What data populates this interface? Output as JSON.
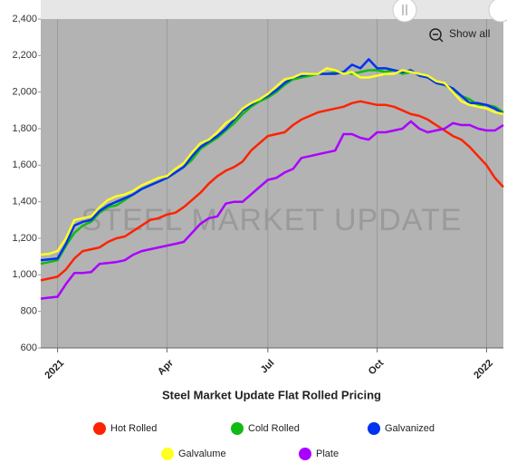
{
  "chart_data": {
    "type": "line",
    "title": "Steel Market Update Flat Rolled Pricing",
    "watermark": "STEEL MARKET UPDATE",
    "button": "Show all",
    "categories": [
      null,
      null,
      "2021",
      null,
      null,
      null,
      null,
      null,
      null,
      null,
      null,
      null,
      null,
      null,
      null,
      "Apr",
      null,
      null,
      null,
      null,
      null,
      null,
      null,
      null,
      null,
      null,
      null,
      "Jul",
      null,
      null,
      null,
      null,
      null,
      null,
      null,
      null,
      null,
      null,
      null,
      null,
      "Oct",
      null,
      null,
      null,
      null,
      null,
      null,
      null,
      null,
      null,
      null,
      null,
      null,
      "2022",
      null,
      null
    ],
    "ylim": [
      600,
      2400
    ],
    "yticks": [
      600,
      800,
      {
        "value": 1000,
        "label": "1,000"
      },
      {
        "value": 1200,
        "label": "1,200"
      },
      {
        "value": 1400,
        "label": "1,400"
      },
      {
        "value": 1600,
        "label": "1,600"
      },
      {
        "value": 1800,
        "label": "1,800"
      },
      {
        "value": 2000,
        "label": "2,000"
      },
      {
        "value": 2200,
        "label": "2,200"
      },
      {
        "value": 2400,
        "label": "2,400"
      }
    ],
    "xgrid": true,
    "series": [
      {
        "name": "Hot Rolled",
        "color": "#ff2200",
        "values": [
          970,
          980,
          990,
          1030,
          1090,
          1130,
          1140,
          1150,
          1180,
          1200,
          1210,
          1240,
          1270,
          1300,
          1310,
          1330,
          1340,
          1370,
          1410,
          1450,
          1500,
          1540,
          1570,
          1590,
          1620,
          1680,
          1720,
          1760,
          1770,
          1780,
          1820,
          1850,
          1870,
          1890,
          1900,
          1910,
          1920,
          1940,
          1950,
          1940,
          1930,
          1930,
          1920,
          1900,
          1880,
          1870,
          1850,
          1820,
          1790,
          1760,
          1740,
          1700,
          1650,
          1600,
          1530,
          1480
        ]
      },
      {
        "name": "Cold Rolled",
        "color": "#11bb11",
        "values": [
          1060,
          1070,
          1080,
          1160,
          1230,
          1270,
          1290,
          1340,
          1370,
          1380,
          1410,
          1440,
          1470,
          1490,
          1510,
          1530,
          1560,
          1590,
          1630,
          1690,
          1720,
          1750,
          1790,
          1830,
          1880,
          1920,
          1950,
          1970,
          2000,
          2040,
          2070,
          2080,
          2090,
          2100,
          2100,
          2110,
          2110,
          2100,
          2110,
          2120,
          2120,
          2110,
          2120,
          2100,
          2110,
          2100,
          2090,
          2050,
          2040,
          2010,
          1980,
          1960,
          1930,
          1930,
          1920,
          1890
        ]
      },
      {
        "name": "Galvanized",
        "color": "#0033ee",
        "values": [
          1080,
          1085,
          1090,
          1170,
          1270,
          1290,
          1300,
          1350,
          1380,
          1400,
          1420,
          1440,
          1470,
          1490,
          1510,
          1530,
          1560,
          1590,
          1650,
          1700,
          1730,
          1760,
          1800,
          1850,
          1900,
          1930,
          1960,
          1980,
          2010,
          2050,
          2080,
          2090,
          2100,
          2100,
          2100,
          2100,
          2110,
          2150,
          2130,
          2180,
          2130,
          2130,
          2120,
          2110,
          2120,
          2090,
          2080,
          2050,
          2040,
          2020,
          1980,
          1940,
          1940,
          1930,
          1910,
          1880
        ]
      },
      {
        "name": "Galvalume",
        "color": "#ffff22",
        "values": [
          1110,
          1115,
          1130,
          1200,
          1300,
          1310,
          1320,
          1370,
          1410,
          1430,
          1440,
          1460,
          1490,
          1510,
          1530,
          1540,
          1580,
          1610,
          1670,
          1720,
          1740,
          1780,
          1830,
          1860,
          1910,
          1940,
          1960,
          1990,
          2030,
          2070,
          2080,
          2100,
          2100,
          2100,
          2130,
          2120,
          2100,
          2110,
          2080,
          2080,
          2090,
          2100,
          2100,
          2120,
          2110,
          2100,
          2090,
          2060,
          2050,
          2000,
          1950,
          1930,
          1920,
          1910,
          1890,
          1880
        ]
      },
      {
        "name": "Plate",
        "color": "#aa00ff",
        "values": [
          870,
          875,
          880,
          950,
          1010,
          1010,
          1015,
          1060,
          1065,
          1070,
          1080,
          1110,
          1130,
          1140,
          1150,
          1160,
          1170,
          1180,
          1230,
          1280,
          1310,
          1320,
          1390,
          1400,
          1400,
          1440,
          1480,
          1520,
          1530,
          1560,
          1580,
          1640,
          1650,
          1660,
          1670,
          1680,
          1770,
          1770,
          1750,
          1740,
          1780,
          1780,
          1790,
          1800,
          1840,
          1800,
          1780,
          1790,
          1800,
          1830,
          1820,
          1820,
          1800,
          1790,
          1790,
          1820
        ]
      }
    ]
  }
}
